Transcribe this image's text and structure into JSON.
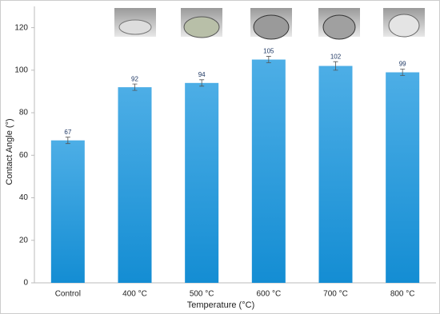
{
  "chart_data": {
    "type": "bar",
    "categories": [
      "Control",
      "400 °C",
      "500 °C",
      "600 °C",
      "700 °C",
      "800 °C"
    ],
    "values": [
      67,
      92,
      94,
      105,
      102,
      99
    ],
    "errors": [
      1.5,
      1.5,
      1.5,
      1.5,
      2,
      1.5
    ],
    "color": "#1f95d8",
    "xlabel": "Temperature (°C)",
    "ylabel": "Contact Angle (°)",
    "ylim": [
      0,
      130
    ],
    "yticks": [
      0,
      20,
      40,
      60,
      80,
      100,
      120
    ],
    "grid": false
  }
}
